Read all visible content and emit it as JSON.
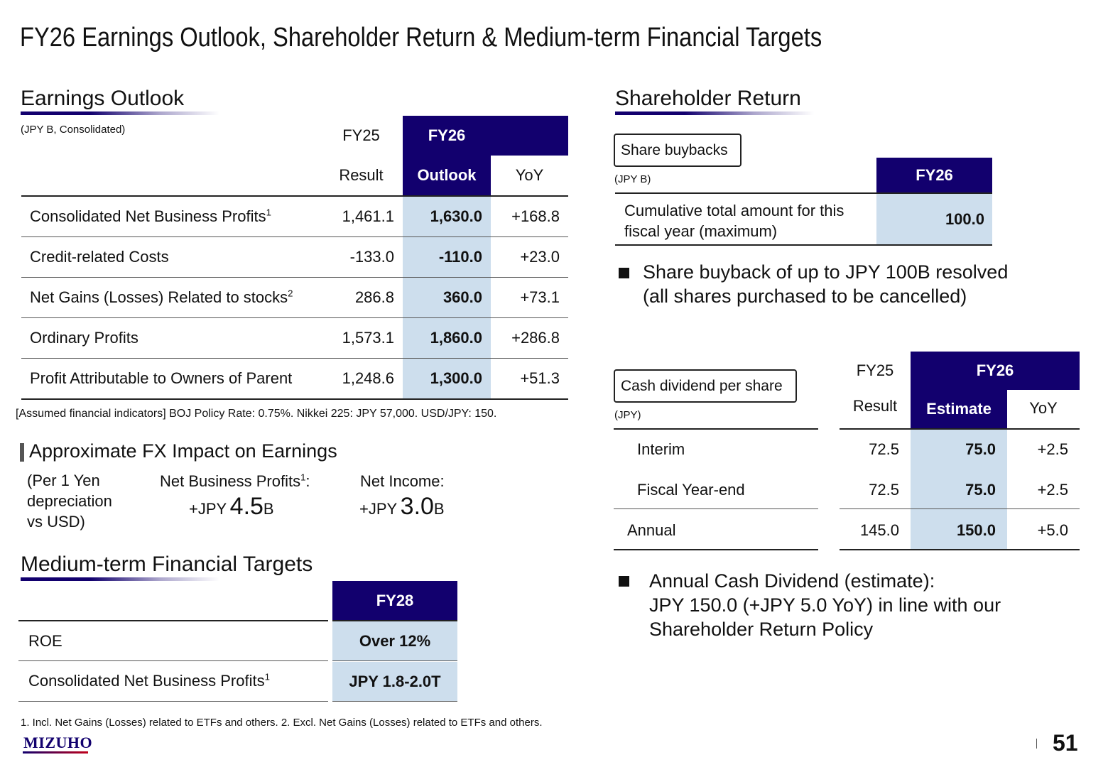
{
  "page": {
    "title": "FY26 Earnings Outlook, Shareholder Return & Medium-term Financial Targets",
    "page_number": "51",
    "logo_text": "MIZUHO"
  },
  "earnings": {
    "section_title": "Earnings Outlook",
    "unit": "(JPY B, Consolidated)",
    "headers": {
      "fy25": "FY25",
      "fy26": "FY26",
      "result": "Result",
      "outlook": "Outlook",
      "yoy": "YoY"
    },
    "rows": [
      {
        "label": "Consolidated Net Business Profits",
        "sup": "1",
        "result": "1,461.1",
        "outlook": "1,630.0",
        "yoy": "+168.8"
      },
      {
        "label": "Credit-related Costs",
        "sup": "",
        "result": "-133.0",
        "outlook": "-110.0",
        "yoy": "+23.0"
      },
      {
        "label": "Net Gains (Losses) Related to stocks",
        "sup": "2",
        "result": "286.8",
        "outlook": "360.0",
        "yoy": "+73.1"
      },
      {
        "label": "Ordinary Profits",
        "sup": "",
        "result": "1,573.1",
        "outlook": "1,860.0",
        "yoy": "+286.8"
      },
      {
        "label": "Profit Attributable to Owners of Parent",
        "sup": "",
        "result": "1,248.6",
        "outlook": "1,300.0",
        "yoy": "+51.3"
      }
    ],
    "assumptions": "[Assumed financial indicators] BOJ Policy Rate: 0.75%. Nikkei 225: JPY 57,000. USD/JPY: 150."
  },
  "fx": {
    "title": "Approximate FX Impact on Earnings",
    "note_line1": "(Per 1 Yen",
    "note_line2": "depreciation",
    "note_line3": "vs USD)",
    "nbp_label": "Net Business Profits",
    "nbp_sup": "1",
    "nbp_colon": ":",
    "nbp_prefix": "+JPY",
    "nbp_value": "4.5",
    "nbp_unit": "B",
    "ni_label": "Net Income:",
    "ni_prefix": "+JPY",
    "ni_value": "3.0",
    "ni_unit": "B"
  },
  "targets": {
    "section_title": "Medium-term Financial Targets",
    "header": "FY28",
    "rows": [
      {
        "label": "ROE",
        "sup": "",
        "value": "Over 12%"
      },
      {
        "label": "Consolidated Net Business Profits",
        "sup": "1",
        "value": "JPY 1.8-2.0T"
      }
    ]
  },
  "footnote": "1. Incl. Net Gains (Losses) related to ETFs and others. 2. Excl. Net Gains (Losses) related to ETFs and others.",
  "shareholder": {
    "section_title": "Shareholder Return",
    "buyback": {
      "box_label": "Share buybacks",
      "unit": "(JPY B)",
      "header": "FY26",
      "row_label_1": "Cumulative total amount for this",
      "row_label_2": "fiscal year (maximum)",
      "value": "100.0",
      "bullet_1": "Share buyback of up to JPY 100B resolved",
      "bullet_2": "(all shares purchased to be cancelled)"
    },
    "dividend": {
      "box_label": "Cash dividend per share",
      "unit": "(JPY)",
      "headers": {
        "fy25": "FY25",
        "fy26": "FY26",
        "result": "Result",
        "estimate": "Estimate",
        "yoy": "YoY"
      },
      "rows": [
        {
          "label": "Interim",
          "result": "72.5",
          "estimate": "75.0",
          "yoy": "+2.5"
        },
        {
          "label": "Fiscal Year-end",
          "result": "72.5",
          "estimate": "75.0",
          "yoy": "+2.5"
        },
        {
          "label": "Annual",
          "result": "145.0",
          "estimate": "150.0",
          "yoy": "+5.0"
        }
      ],
      "bullet_1": "Annual Cash Dividend (estimate):",
      "bullet_2": "JPY 150.0 (+JPY 5.0 YoY) in line with our",
      "bullet_3": "Shareholder Return Policy"
    }
  },
  "colors": {
    "navy": "#12006e",
    "light_blue": "#cddeed"
  }
}
